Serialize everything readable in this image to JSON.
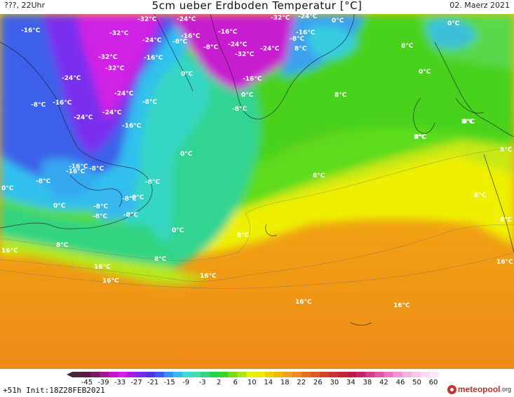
{
  "header": {
    "left_label": "???, 22Uhr",
    "title": "5cm ueber Erdboden Temperatur [°C]",
    "date": "02. Maerz 2021"
  },
  "footer": {
    "run_info": "+51h Init:18Z28FEB2021",
    "logo_text": "meteopool",
    "logo_tld": ".org"
  },
  "legend": {
    "labels": [
      "-45",
      "-39",
      "-33",
      "-27",
      "-21",
      "-15",
      "-9",
      "-3",
      "2",
      "6",
      "10",
      "14",
      "18",
      "22",
      "26",
      "30",
      "34",
      "38",
      "42",
      "46",
      "50",
      "60"
    ],
    "colors": [
      "#4a2a3a",
      "#5a1a48",
      "#7a1a5e",
      "#a01890",
      "#c418c8",
      "#d220e6",
      "#a31ee8",
      "#7a28ee",
      "#4f34e6",
      "#3c5cf0",
      "#3a8ef4",
      "#3ab8ee",
      "#40d8d8",
      "#3ee0b0",
      "#32d680",
      "#24d24a",
      "#3cd228",
      "#78dc18",
      "#b0e414",
      "#e8f00c",
      "#f2e800",
      "#f2d000",
      "#f0b800",
      "#f0a020",
      "#ec8a24",
      "#e47028",
      "#dc5a28",
      "#d44428",
      "#cc3030",
      "#c42434",
      "#bc1a44",
      "#c8206a",
      "#d63c8c",
      "#e058a8",
      "#e876c0",
      "#f094d4",
      "#f4b0e0",
      "#f8c8ea",
      "#fbdcf2",
      "#fde8f8"
    ]
  },
  "isotherm_labels": [
    {
      "text": "-32°C"
    },
    {
      "text": "-24°C"
    },
    {
      "text": "-16°C"
    },
    {
      "text": "-32°C"
    },
    {
      "text": "-24°C"
    },
    {
      "text": "-16°C"
    },
    {
      "text": "-8°C"
    },
    {
      "text": "-32°C"
    },
    {
      "text": "-32°C"
    },
    {
      "text": "-24°C"
    },
    {
      "text": "-16°C"
    },
    {
      "text": "-24°C"
    },
    {
      "text": "-8°C"
    },
    {
      "text": "-16°C"
    },
    {
      "text": "-24°C"
    },
    {
      "text": "-24°C"
    },
    {
      "text": "-16°C"
    },
    {
      "text": "-8°C"
    },
    {
      "text": "-16°C"
    },
    {
      "text": "-8°C"
    },
    {
      "text": "0°C"
    },
    {
      "text": "-8°C"
    },
    {
      "text": "0°C"
    },
    {
      "text": "-8°C"
    },
    {
      "text": "-16°C"
    },
    {
      "text": "-32°C"
    },
    {
      "text": "-24°C"
    },
    {
      "text": "-32°C"
    },
    {
      "text": "-24°C"
    },
    {
      "text": "-24°C"
    },
    {
      "text": "-16°C"
    },
    {
      "text": "-8°C"
    },
    {
      "text": "-8°C"
    },
    {
      "text": "-16°C"
    },
    {
      "text": "0°C"
    },
    {
      "text": "-8°C"
    },
    {
      "text": "0°C"
    },
    {
      "text": "-16°C"
    },
    {
      "text": "0°C"
    },
    {
      "text": "-8°C"
    },
    {
      "text": "8°C"
    },
    {
      "text": "0°C"
    },
    {
      "text": "0°C"
    },
    {
      "text": "-8°C"
    },
    {
      "text": "0°C"
    },
    {
      "text": "-8°C"
    },
    {
      "text": "-8°C"
    },
    {
      "text": "0°C"
    },
    {
      "text": "0°C"
    },
    {
      "text": "8°C"
    },
    {
      "text": "8°C"
    },
    {
      "text": "8°C"
    },
    {
      "text": "8°C"
    },
    {
      "text": "8°C"
    },
    {
      "text": "8°C"
    },
    {
      "text": "8°C"
    },
    {
      "text": "8°C"
    },
    {
      "text": "16°C"
    },
    {
      "text": "8°C"
    },
    {
      "text": "8°C"
    },
    {
      "text": "16°C"
    },
    {
      "text": "16°C"
    },
    {
      "text": "16°C"
    },
    {
      "text": "16°C"
    },
    {
      "text": "16°C"
    },
    {
      "text": "16°C"
    },
    {
      "text": "8°C"
    },
    {
      "text": "8°C"
    },
    {
      "text": "8°C"
    }
  ]
}
